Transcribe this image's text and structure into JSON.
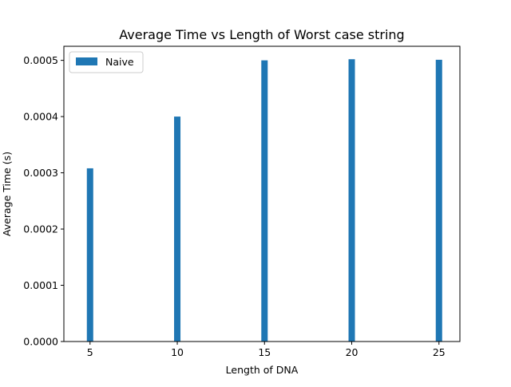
{
  "chart_data": {
    "type": "bar",
    "title": "Average Time vs Length of Worst case string",
    "xlabel": "Length of DNA",
    "ylabel": "Average Time (s)",
    "xlim": [
      3.5,
      26.2
    ],
    "ylim": [
      0,
      0.000525
    ],
    "x_ticks": [
      "5",
      "10",
      "15",
      "20",
      "25"
    ],
    "y_ticks": [
      "0.0000",
      "0.0001",
      "0.0002",
      "0.0003",
      "0.0004",
      "0.0005"
    ],
    "grid": false,
    "legend_position": "upper-left",
    "series": [
      {
        "name": "Naive",
        "color": "#1f77b4",
        "x": [
          5,
          10,
          15,
          20,
          25
        ],
        "values": [
          0.000308,
          0.0004,
          0.0005,
          0.000502,
          0.000501
        ]
      }
    ]
  }
}
